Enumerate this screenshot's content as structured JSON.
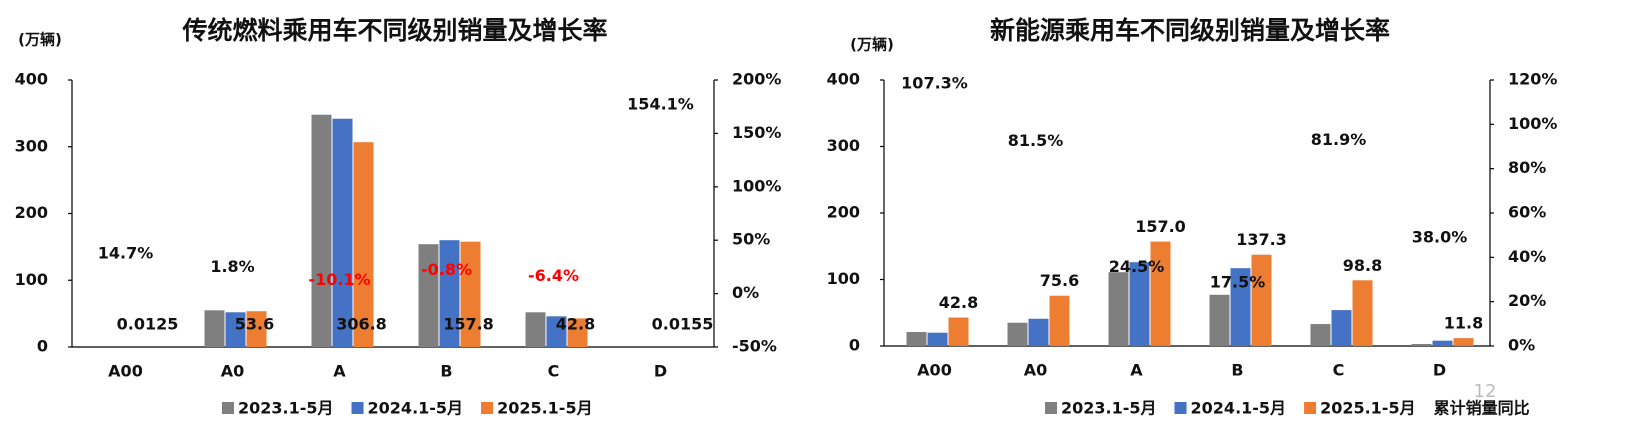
{
  "chart_data": [
    {
      "type": "bar",
      "title": "传统燃料乘用车不同级别销量及增长率",
      "y_label": "(万辆)",
      "categories": [
        "A00",
        "A0",
        "A",
        "B",
        "C",
        "D"
      ],
      "series": [
        {
          "name": "2023.1-5月",
          "color": "#7f7f7f",
          "values": [
            0,
            55,
            348,
            154,
            52,
            0
          ]
        },
        {
          "name": "2024.1-5月",
          "color": "#4472c4",
          "values": [
            0,
            52,
            342,
            160,
            46,
            0
          ]
        },
        {
          "name": "2025.1-5月",
          "color": "#ed7d31",
          "values": [
            0.0125,
            53.6,
            306.8,
            157.8,
            42.8,
            0.0155
          ]
        },
        {
          "axis": "y2",
          "values": [
            14.7,
            1.8,
            -10.1,
            -0.8,
            -6.4,
            154.1
          ],
          "value_labels": [
            "14.7%",
            "1.8%",
            "-10.1%",
            "-0.8%",
            "-6.4%",
            "154.1%"
          ]
        }
      ],
      "negative_color": "#ff0000",
      "ylim": [
        0,
        400
      ],
      "yticks": [
        0,
        100,
        200,
        300,
        400
      ],
      "y2lim": [
        -50,
        200
      ],
      "y2ticks": [
        {
          "value": -50,
          "label": "-50%"
        },
        {
          "value": 0,
          "label": "0%"
        },
        {
          "value": 50,
          "label": "50%"
        },
        {
          "value": 100,
          "label": "100%"
        },
        {
          "value": 150,
          "label": "150%"
        },
        {
          "value": 200,
          "label": "200%"
        }
      ]
    },
    {
      "type": "bar",
      "title": "新能源乘用车不同级别销量及增长率",
      "y_label": "(万辆)",
      "categories": [
        "A00",
        "A0",
        "A",
        "B",
        "C",
        "D"
      ],
      "series": [
        {
          "name": "2023.1-5月",
          "color": "#7f7f7f",
          "values": [
            21,
            35,
            111,
            77,
            33,
            3
          ]
        },
        {
          "name": "2024.1-5月",
          "color": "#4472c4",
          "values": [
            20,
            41,
            126,
            117,
            54,
            8
          ]
        },
        {
          "name": "2025.1-5月",
          "color": "#ed7d31",
          "values": [
            42.8,
            75.6,
            157.0,
            137.3,
            98.8,
            11.8
          ],
          "value_labels": [
            "42.8",
            "75.6",
            "157.0",
            "137.3",
            "98.8",
            "11.8"
          ]
        },
        {
          "name": "累计销量同比",
          "axis": "y2",
          "values": [
            107.3,
            81.5,
            24.5,
            17.5,
            81.9,
            38.0
          ],
          "value_labels": [
            "107.3%",
            "81.5%",
            "24.5%",
            "17.5%",
            "81.9%",
            "38.0%"
          ]
        }
      ],
      "ylim": [
        0,
        400
      ],
      "yticks": [
        0,
        100,
        200,
        300,
        400
      ],
      "y2lim": [
        0,
        120
      ],
      "y2ticks": [
        {
          "value": 0,
          "label": "0%"
        },
        {
          "value": 20,
          "label": "20%"
        },
        {
          "value": 40,
          "label": "40%"
        },
        {
          "value": 60,
          "label": "60%"
        },
        {
          "value": 80,
          "label": "80%"
        },
        {
          "value": 100,
          "label": "100%"
        },
        {
          "value": 120,
          "label": "120%"
        }
      ]
    }
  ],
  "page_number": "12"
}
